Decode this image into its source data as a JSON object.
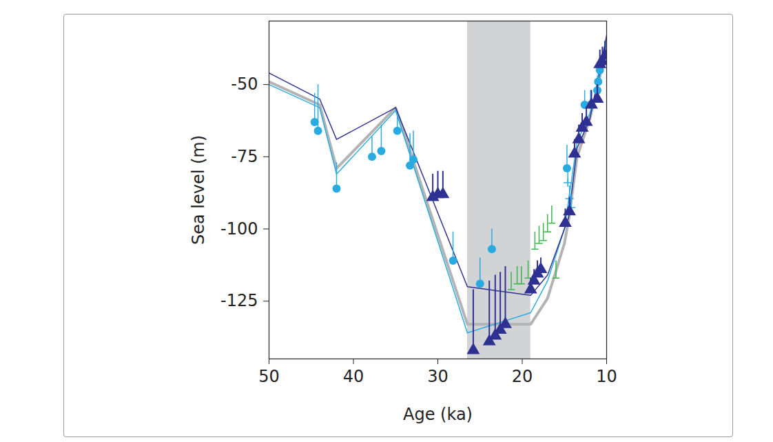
{
  "chart_data": {
    "type": "line",
    "x_label": "Age (ka)",
    "y_label": "Sea level (m)",
    "xlim": [
      50,
      10
    ],
    "xticks": [
      50,
      40,
      30,
      20,
      10
    ],
    "ylim": [
      -145,
      -28
    ],
    "yticks": [
      -50,
      -75,
      -100,
      -125
    ],
    "bands": [
      {
        "x0": 26.5,
        "x1": 19,
        "color": "#d1d3d4"
      }
    ],
    "series": [
      {
        "type": "line",
        "color": "#b3b3b3",
        "x": [
          50,
          44,
          42,
          35,
          26.5,
          19,
          17,
          15,
          14.5,
          13.5,
          12,
          11,
          10
        ],
        "values": [
          -49,
          -57,
          -79,
          -58,
          -133,
          -133,
          -124,
          -105,
          -97,
          -75,
          -62,
          -50,
          -36
        ]
      },
      {
        "type": "line",
        "color": "#29abe2",
        "x": [
          50,
          44,
          42,
          35,
          26.5,
          19,
          17,
          15,
          14.5,
          13.5,
          12,
          11,
          10
        ],
        "values": [
          -50,
          -58,
          -81,
          -59,
          -136,
          -129,
          -118,
          -100,
          -90,
          -70,
          -60,
          -50,
          -35
        ]
      },
      {
        "type": "line",
        "color": "#2e3192",
        "x": [
          50,
          44,
          42,
          35,
          26.5,
          19,
          17,
          15,
          14.5,
          13.5,
          12,
          11,
          10
        ],
        "values": [
          -46,
          -55,
          -69,
          -58,
          -120,
          -123,
          -116,
          -100,
          -96,
          -72,
          -62,
          -48,
          -33
        ]
      },
      {
        "type": "scatter",
        "marker": "circle",
        "color": "#29abe2",
        "x": [
          44.6,
          44.2,
          42.0,
          37.8,
          36.7,
          34.8,
          33.3,
          32.9,
          28.2,
          25.0,
          23.6,
          14.7,
          12.6,
          11.9,
          11.1,
          11.0,
          10.8
        ],
        "values": [
          -63,
          -66,
          -86,
          -75,
          -73,
          -66,
          -78,
          -76,
          -111,
          -119,
          -107,
          -79,
          -57,
          -57,
          -52,
          -49,
          -45
        ],
        "error_top": [
          -53,
          -50,
          -77,
          -68,
          -64,
          -60,
          -67,
          -66,
          -101,
          -110,
          -100,
          -71,
          -52,
          -52,
          -47,
          -44,
          -40
        ]
      },
      {
        "type": "scatter",
        "marker": "cross",
        "color": "#29abe2",
        "x": [
          14.6,
          14.4,
          14.2
        ],
        "values": [
          -84,
          -89.5,
          -92.6
        ],
        "error_top": [
          -80,
          -85,
          -88
        ]
      },
      {
        "type": "scatter",
        "marker": "tick",
        "color": "#39b54a",
        "x": [
          21.3,
          20.6,
          20.1,
          19.3,
          18.5,
          18.0,
          17.5,
          17.0,
          16.5,
          16.0
        ],
        "values": [
          -121,
          -119,
          -119,
          -117,
          -107,
          -105,
          -104,
          -101,
          -98,
          -117
        ],
        "error_top": [
          -115,
          -113,
          -113,
          -111,
          -101,
          -99,
          -98,
          -95,
          -92,
          -111
        ]
      },
      {
        "type": "scatter",
        "marker": "triangle",
        "color": "#2e3192",
        "x": [
          30.6,
          30.0,
          29.4,
          25.8,
          23.9,
          23.2,
          22.6,
          22.0,
          19.0,
          18.6,
          18.2,
          17.8,
          14.9,
          14.4,
          13.8,
          13.3,
          12.9,
          12.4,
          11.8,
          11.1,
          10.8,
          10.5,
          10.2
        ],
        "values": [
          -89,
          -88,
          -88,
          -142,
          -139,
          -137,
          -135,
          -133,
          -121,
          -118,
          -115.5,
          -114,
          -98,
          -94,
          -74,
          -69,
          -65,
          -63,
          -57,
          -55,
          -43,
          -42,
          -40
        ],
        "error_top": [
          -81,
          -80,
          -80,
          -121,
          -118,
          -116,
          -115,
          -113,
          -117,
          -114,
          -111,
          -110,
          -93,
          -89,
          -69,
          -64,
          -60,
          -58,
          -52,
          -50,
          -38,
          -37,
          -35
        ]
      }
    ]
  }
}
